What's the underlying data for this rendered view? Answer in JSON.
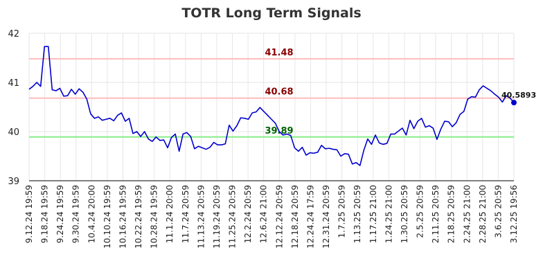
{
  "chart_data": {
    "type": "line",
    "title": "TOTR Long Term Signals",
    "xlabel": "",
    "ylabel": "",
    "ylim": [
      39,
      42
    ],
    "yticks": [
      39,
      40,
      41,
      42
    ],
    "grid": true,
    "x_tick_labels": [
      "9.12.24 19:59",
      "9.18.24 19:59",
      "9.24.24 19:59",
      "9.30.24 19:59",
      "10.4.24 20:00",
      "10.10.24 19:59",
      "10.16.24 19:59",
      "10.22.24 19:59",
      "10.28.24 19:59",
      "11.1.24 20:00",
      "11.7.24 20:59",
      "11.13.24 20:59",
      "11.19.24 20:59",
      "11.25.24 20:59",
      "12.2.24 20:59",
      "12.6.24 21:00",
      "12.12.24 20:59",
      "12.18.24 20:59",
      "12.24.24 17:59",
      "12.31.24 20:59",
      "1.7.25 20:59",
      "1.13.25 20:59",
      "1.17.25 21:00",
      "1.24.25 21:00",
      "1.30.25 20:59",
      "2.5.25 20:59",
      "2.11.25 20:59",
      "2.18.25 20:59",
      "2.24.25 21:00",
      "2.28.25 21:00",
      "3.6.25 20:59",
      "3.12.25 19:56"
    ],
    "levels": [
      {
        "value": 41.48,
        "label": "41.48",
        "line_color": "#ffbbbb",
        "label_color": "#8b0000"
      },
      {
        "value": 40.68,
        "label": "40.68",
        "line_color": "#ffbbbb",
        "label_color": "#8b0000"
      },
      {
        "value": 39.89,
        "label": "39.89",
        "line_color": "#88ee88",
        "label_color": "#006400"
      }
    ],
    "last_value_label": "40.5893",
    "line_color": "#0000cc",
    "series": [
      {
        "values": [
          40.86,
          40.92,
          41.0,
          40.92,
          41.73,
          41.73,
          40.85,
          40.83,
          40.88,
          40.72,
          40.73,
          40.86,
          40.76,
          40.87,
          40.8,
          40.66,
          40.36,
          40.27,
          40.3,
          40.23,
          40.25,
          40.27,
          40.22,
          40.33,
          40.38,
          40.21,
          40.27,
          39.96,
          40.0,
          39.9,
          40.0,
          39.85,
          39.8,
          39.89,
          39.82,
          39.83,
          39.67,
          39.88,
          39.95,
          39.6,
          39.95,
          39.98,
          39.9,
          39.65,
          39.7,
          39.67,
          39.64,
          39.68,
          39.78,
          39.73,
          39.73,
          39.75,
          40.13,
          40.01,
          40.12,
          40.28,
          40.27,
          40.25,
          40.38,
          40.4,
          40.49,
          40.41,
          40.33,
          40.25,
          40.17,
          40.0,
          39.93,
          39.95,
          39.92,
          39.67,
          39.6,
          39.68,
          39.52,
          39.57,
          39.56,
          39.58,
          39.72,
          39.65,
          39.66,
          39.64,
          39.63,
          39.5,
          39.55,
          39.54,
          39.34,
          39.37,
          39.31,
          39.62,
          39.85,
          39.74,
          39.93,
          39.77,
          39.74,
          39.76,
          39.95,
          39.95,
          40.01,
          40.07,
          39.93,
          40.23,
          40.06,
          40.21,
          40.27,
          40.09,
          40.12,
          40.07,
          39.84,
          40.05,
          40.21,
          40.2,
          40.1,
          40.18,
          40.35,
          40.41,
          40.66,
          40.71,
          40.7,
          40.85,
          40.93,
          40.88,
          40.83,
          40.76,
          40.7,
          40.6,
          40.73,
          40.68,
          40.5893
        ]
      }
    ]
  }
}
